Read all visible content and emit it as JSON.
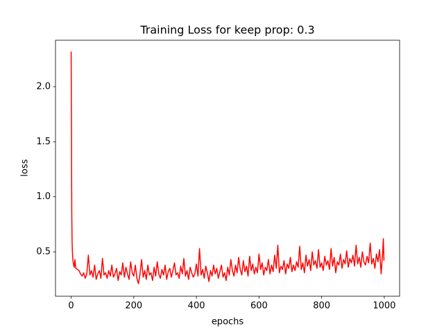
{
  "chart_data": {
    "type": "line",
    "title": "Training Loss for keep prop: 0.3",
    "xlabel": "epochs",
    "ylabel": "loss",
    "color": "#ff0000",
    "x": [
      0,
      1,
      2,
      3,
      4,
      5,
      6,
      8,
      10,
      12,
      15,
      20,
      25,
      30,
      35,
      40,
      45,
      50,
      55,
      60,
      65,
      70,
      75,
      80,
      85,
      90,
      95,
      100,
      105,
      110,
      115,
      120,
      125,
      130,
      135,
      140,
      145,
      150,
      155,
      160,
      165,
      170,
      175,
      180,
      185,
      190,
      195,
      200,
      205,
      210,
      215,
      220,
      225,
      230,
      235,
      240,
      245,
      250,
      255,
      260,
      265,
      270,
      275,
      280,
      285,
      290,
      295,
      300,
      305,
      310,
      315,
      320,
      325,
      330,
      335,
      340,
      345,
      350,
      355,
      360,
      365,
      370,
      375,
      380,
      385,
      390,
      395,
      400,
      405,
      410,
      415,
      420,
      425,
      430,
      435,
      440,
      445,
      450,
      455,
      460,
      465,
      470,
      475,
      480,
      485,
      490,
      495,
      500,
      505,
      510,
      515,
      520,
      525,
      530,
      535,
      540,
      545,
      550,
      555,
      560,
      565,
      570,
      575,
      580,
      585,
      590,
      595,
      600,
      605,
      610,
      615,
      620,
      625,
      630,
      635,
      640,
      645,
      650,
      655,
      660,
      665,
      670,
      675,
      680,
      685,
      690,
      695,
      700,
      705,
      710,
      715,
      720,
      725,
      730,
      735,
      740,
      745,
      750,
      755,
      760,
      765,
      770,
      775,
      780,
      785,
      790,
      795,
      800,
      805,
      810,
      815,
      820,
      825,
      830,
      835,
      840,
      845,
      850,
      855,
      860,
      865,
      870,
      875,
      880,
      885,
      890,
      895,
      900,
      905,
      910,
      915,
      920,
      925,
      930,
      935,
      940,
      945,
      950,
      955,
      960,
      965,
      970,
      975,
      980,
      985,
      990,
      995,
      997,
      999
    ],
    "values": [
      2.32,
      1.6,
      0.85,
      0.6,
      0.5,
      0.45,
      0.42,
      0.38,
      0.36,
      0.43,
      0.35,
      0.34,
      0.33,
      0.3,
      0.28,
      0.31,
      0.26,
      0.3,
      0.47,
      0.29,
      0.33,
      0.27,
      0.38,
      0.25,
      0.3,
      0.33,
      0.26,
      0.44,
      0.29,
      0.31,
      0.26,
      0.33,
      0.28,
      0.38,
      0.27,
      0.3,
      0.35,
      0.24,
      0.32,
      0.29,
      0.4,
      0.27,
      0.36,
      0.3,
      0.25,
      0.41,
      0.31,
      0.28,
      0.38,
      0.26,
      0.21,
      0.3,
      0.43,
      0.27,
      0.33,
      0.25,
      0.38,
      0.29,
      0.31,
      0.24,
      0.36,
      0.28,
      0.41,
      0.3,
      0.26,
      0.34,
      0.29,
      0.38,
      0.25,
      0.32,
      0.35,
      0.27,
      0.33,
      0.4,
      0.29,
      0.31,
      0.26,
      0.37,
      0.3,
      0.44,
      0.28,
      0.33,
      0.25,
      0.36,
      0.31,
      0.27,
      0.3,
      0.39,
      0.28,
      0.53,
      0.29,
      0.34,
      0.26,
      0.37,
      0.31,
      0.23,
      0.33,
      0.28,
      0.38,
      0.3,
      0.35,
      0.26,
      0.32,
      0.38,
      0.27,
      0.31,
      0.24,
      0.36,
      0.29,
      0.43,
      0.33,
      0.28,
      0.38,
      0.31,
      0.45,
      0.34,
      0.29,
      0.42,
      0.32,
      0.37,
      0.28,
      0.46,
      0.33,
      0.39,
      0.3,
      0.36,
      0.31,
      0.48,
      0.34,
      0.4,
      0.29,
      0.36,
      0.33,
      0.43,
      0.3,
      0.38,
      0.32,
      0.47,
      0.35,
      0.56,
      0.31,
      0.37,
      0.34,
      0.42,
      0.3,
      0.39,
      0.35,
      0.45,
      0.32,
      0.38,
      0.33,
      0.41,
      0.36,
      0.55,
      0.34,
      0.4,
      0.31,
      0.47,
      0.37,
      0.43,
      0.33,
      0.5,
      0.38,
      0.42,
      0.35,
      0.52,
      0.36,
      0.4,
      0.33,
      0.46,
      0.38,
      0.42,
      0.34,
      0.53,
      0.37,
      0.45,
      0.31,
      0.41,
      0.38,
      0.48,
      0.35,
      0.43,
      0.39,
      0.51,
      0.36,
      0.44,
      0.4,
      0.47,
      0.37,
      0.56,
      0.39,
      0.45,
      0.36,
      0.5,
      0.41,
      0.38,
      0.46,
      0.4,
      0.58,
      0.39,
      0.44,
      0.35,
      0.48,
      0.41,
      0.52,
      0.3,
      0.5,
      0.62,
      0.42
    ],
    "xlim": [
      -49.95,
      1048.95
    ],
    "ylim": [
      0.097,
      2.422
    ],
    "xticks": [
      0,
      200,
      400,
      600,
      800,
      1000
    ],
    "yticks": [
      0.5,
      {
        "value": 1,
        "label": "1.0"
      },
      1.5,
      {
        "value": 2,
        "label": "2.0"
      }
    ]
  }
}
